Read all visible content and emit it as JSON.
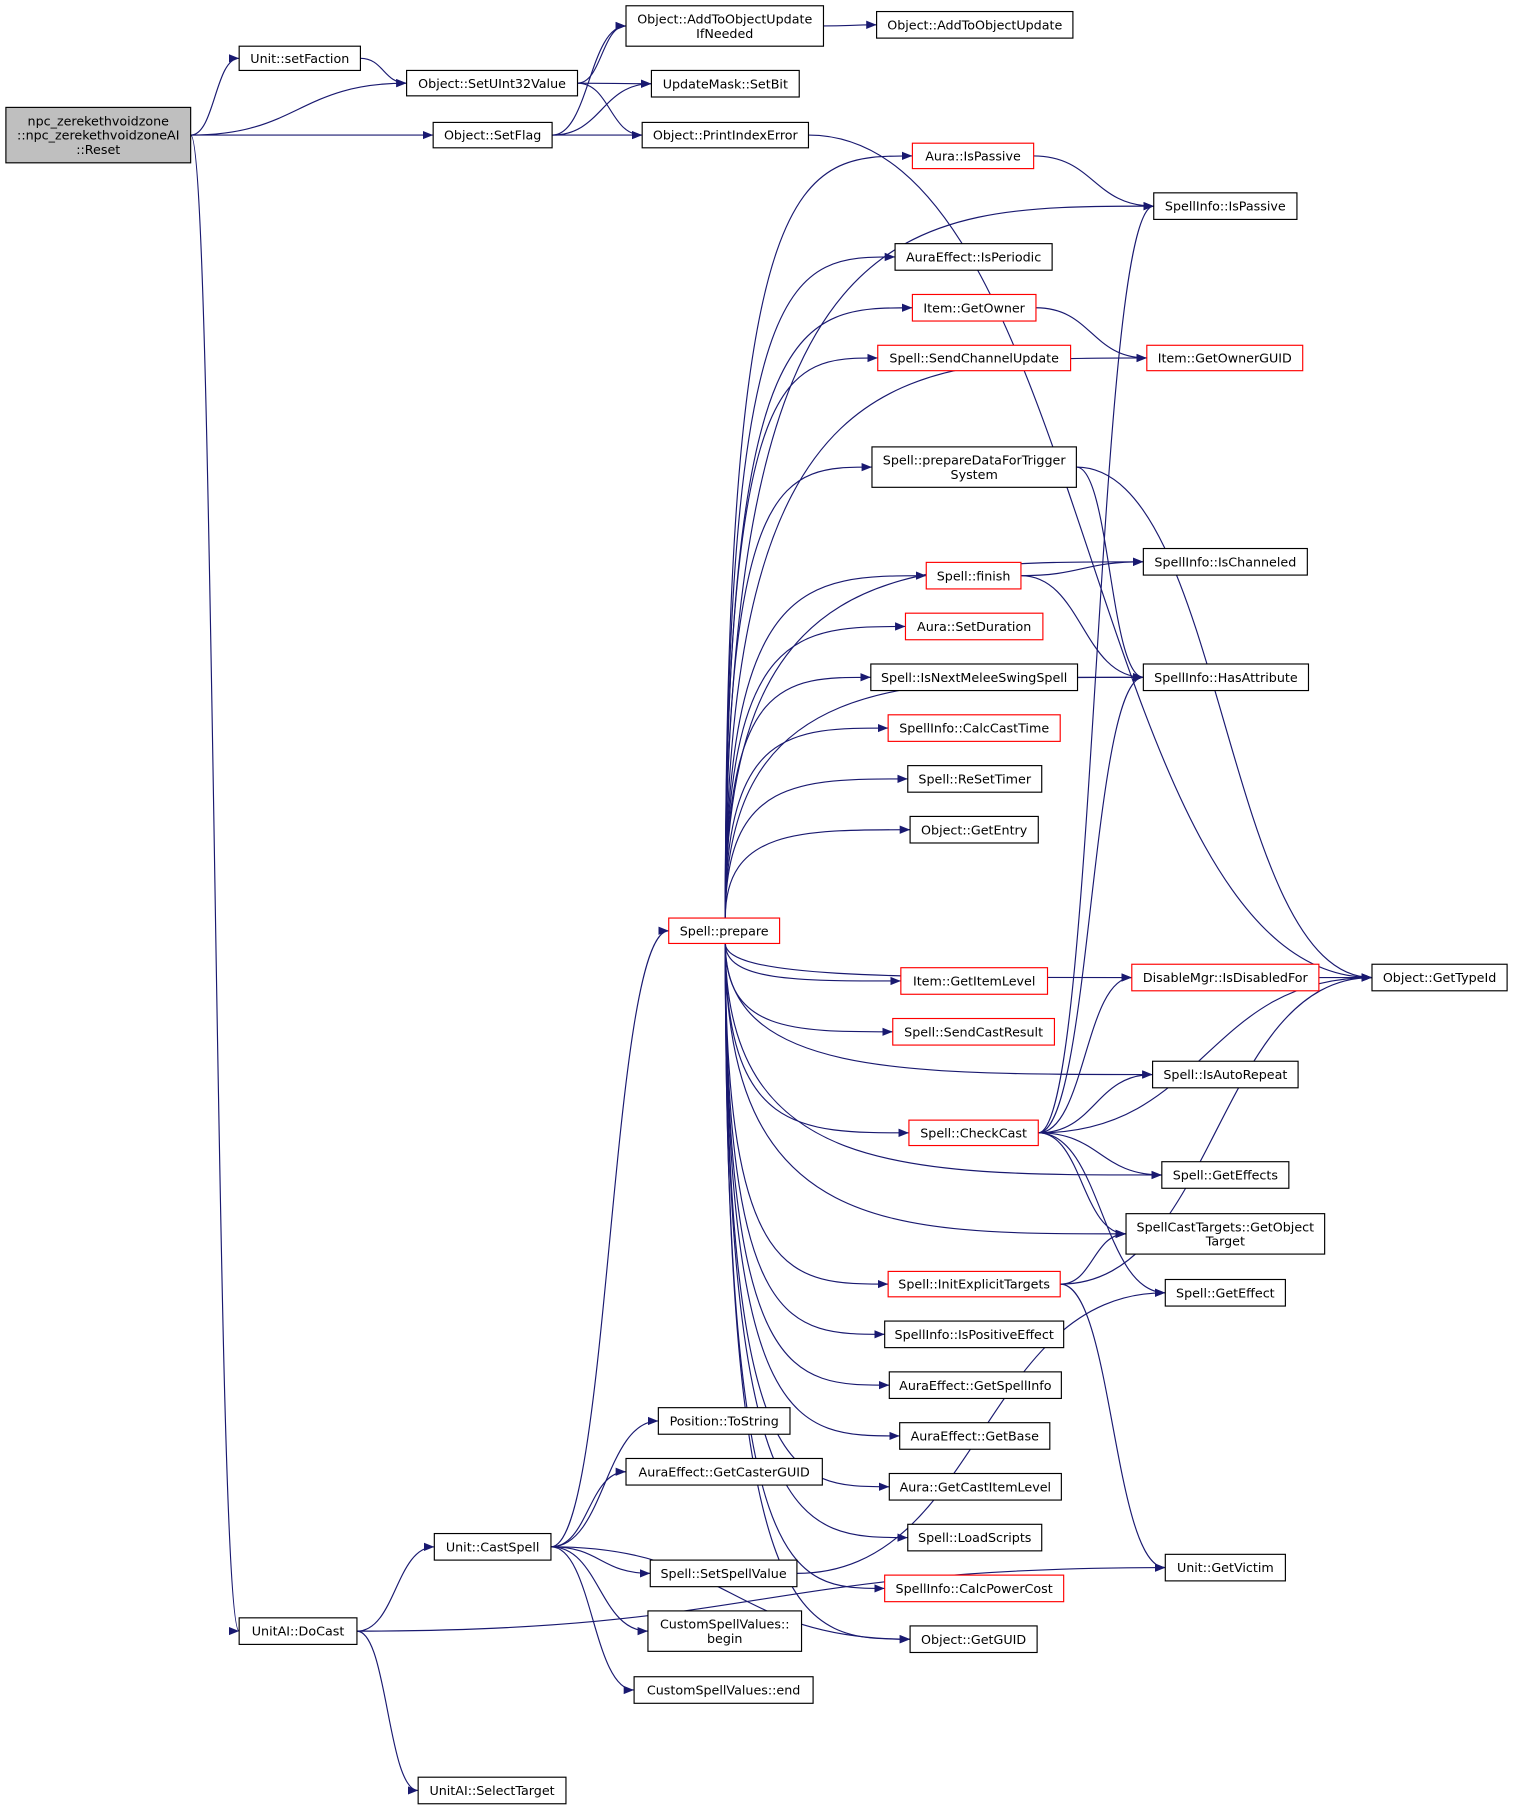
{
  "colors": {
    "edge": "#191970",
    "root_fill": "#bfbfbf",
    "normal_border": "#000000",
    "truncated_border": "#ff0000"
  },
  "nodes": {
    "reset": {
      "lines": [
        "npc_zerekethvoidzone",
        "::npc_zerekethvoidzoneAI",
        "::Reset"
      ],
      "root": true
    },
    "setFaction": {
      "lines": [
        "Unit::setFaction"
      ]
    },
    "setUInt32": {
      "lines": [
        "Object::SetUInt32Value"
      ]
    },
    "setFlag": {
      "lines": [
        "Object::SetFlag"
      ]
    },
    "addIfNeeded": {
      "lines": [
        "Object::AddToObjectUpdate",
        "IfNeeded"
      ]
    },
    "addUpdate": {
      "lines": [
        "Object::AddToObjectUpdate"
      ]
    },
    "setBit": {
      "lines": [
        "UpdateMask::SetBit"
      ]
    },
    "printIdx": {
      "lines": [
        "Object::PrintIndexError"
      ]
    },
    "auraIsPassive": {
      "lines": [
        "Aura::IsPassive"
      ],
      "truncated": true
    },
    "siIsPassive": {
      "lines": [
        "SpellInfo::IsPassive"
      ]
    },
    "isPeriodic": {
      "lines": [
        "AuraEffect::IsPeriodic"
      ]
    },
    "getOwner": {
      "lines": [
        "Item::GetOwner"
      ],
      "truncated": true
    },
    "sendChannel": {
      "lines": [
        "Spell::SendChannelUpdate"
      ],
      "truncated": true
    },
    "ownerGUID": {
      "lines": [
        "Item::GetOwnerGUID"
      ],
      "truncated": true
    },
    "prepTrigger": {
      "lines": [
        "Spell::prepareDataForTrigger",
        "System"
      ]
    },
    "getTypeId": {
      "lines": [
        "Object::GetTypeId"
      ]
    },
    "isChanneled": {
      "lines": [
        "SpellInfo::IsChanneled"
      ]
    },
    "finish": {
      "lines": [
        "Spell::finish"
      ],
      "truncated": true
    },
    "setDuration": {
      "lines": [
        "Aura::SetDuration"
      ],
      "truncated": true
    },
    "nextMelee": {
      "lines": [
        "Spell::IsNextMeleeSwingSpell"
      ]
    },
    "hasAttr": {
      "lines": [
        "SpellInfo::HasAttribute"
      ]
    },
    "calcCast": {
      "lines": [
        "SpellInfo::CalcCastTime"
      ],
      "truncated": true
    },
    "reSetTimer": {
      "lines": [
        "Spell::ReSetTimer"
      ]
    },
    "getEntry": {
      "lines": [
        "Object::GetEntry"
      ]
    },
    "prepare": {
      "lines": [
        "Spell::prepare"
      ],
      "truncated": true
    },
    "itemLevel": {
      "lines": [
        "Item::GetItemLevel"
      ],
      "truncated": true
    },
    "disabled": {
      "lines": [
        "DisableMgr::IsDisabledFor"
      ],
      "truncated": true
    },
    "castResult": {
      "lines": [
        "Spell::SendCastResult"
      ],
      "truncated": true
    },
    "autoRepeat": {
      "lines": [
        "Spell::IsAutoRepeat"
      ]
    },
    "checkCast": {
      "lines": [
        "Spell::CheckCast"
      ],
      "truncated": true
    },
    "getEffects": {
      "lines": [
        "Spell::GetEffects"
      ]
    },
    "objTarget": {
      "lines": [
        "SpellCastTargets::GetObject",
        "Target"
      ]
    },
    "initTargets": {
      "lines": [
        "Spell::InitExplicitTargets"
      ],
      "truncated": true
    },
    "getEffect": {
      "lines": [
        "Spell::GetEffect"
      ]
    },
    "posEffect": {
      "lines": [
        "SpellInfo::IsPositiveEffect"
      ]
    },
    "getSpellInfo": {
      "lines": [
        "AuraEffect::GetSpellInfo"
      ]
    },
    "getBase": {
      "lines": [
        "AuraEffect::GetBase"
      ]
    },
    "castItemLevel": {
      "lines": [
        "Aura::GetCastItemLevel"
      ]
    },
    "loadScripts": {
      "lines": [
        "Spell::LoadScripts"
      ]
    },
    "powerCost": {
      "lines": [
        "SpellInfo::CalcPowerCost"
      ],
      "truncated": true
    },
    "getGUID": {
      "lines": [
        "Object::GetGUID"
      ]
    },
    "getVictim": {
      "lines": [
        "Unit::GetVictim"
      ]
    },
    "toString": {
      "lines": [
        "Position::ToString"
      ]
    },
    "casterGUID": {
      "lines": [
        "AuraEffect::GetCasterGUID"
      ]
    },
    "castSpell": {
      "lines": [
        "Unit::CastSpell"
      ]
    },
    "setSpellValue": {
      "lines": [
        "Spell::SetSpellValue"
      ]
    },
    "csvBegin": {
      "lines": [
        "CustomSpellValues::",
        "begin"
      ]
    },
    "csvEnd": {
      "lines": [
        "CustomSpellValues::end"
      ]
    },
    "doCast": {
      "lines": [
        "UnitAI::DoCast"
      ]
    },
    "selectTarget": {
      "lines": [
        "UnitAI::SelectTarget"
      ]
    }
  },
  "edges": [
    [
      "reset",
      "setFaction"
    ],
    [
      "reset",
      "setUInt32"
    ],
    [
      "reset",
      "setFlag"
    ],
    [
      "reset",
      "doCast"
    ],
    [
      "setFaction",
      "setUInt32"
    ],
    [
      "setUInt32",
      "addIfNeeded"
    ],
    [
      "setUInt32",
      "setBit"
    ],
    [
      "setUInt32",
      "printIdx"
    ],
    [
      "setFlag",
      "addIfNeeded"
    ],
    [
      "setFlag",
      "setBit"
    ],
    [
      "setFlag",
      "printIdx"
    ],
    [
      "addIfNeeded",
      "addUpdate"
    ],
    [
      "printIdx",
      "getTypeId"
    ],
    [
      "auraIsPassive",
      "siIsPassive"
    ],
    [
      "getOwner",
      "ownerGUID"
    ],
    [
      "prepTrigger",
      "getTypeId"
    ],
    [
      "prepTrigger",
      "hasAttr"
    ],
    [
      "finish",
      "isChanneled"
    ],
    [
      "finish",
      "hasAttr"
    ],
    [
      "nextMelee",
      "hasAttr"
    ],
    [
      "disabled",
      "getTypeId"
    ],
    [
      "checkCast",
      "siIsPassive"
    ],
    [
      "checkCast",
      "hasAttr"
    ],
    [
      "checkCast",
      "disabled"
    ],
    [
      "checkCast",
      "autoRepeat"
    ],
    [
      "checkCast",
      "getTypeId"
    ],
    [
      "checkCast",
      "getEffects"
    ],
    [
      "checkCast",
      "objTarget"
    ],
    [
      "checkCast",
      "getEffect"
    ],
    [
      "initTargets",
      "objTarget"
    ],
    [
      "initTargets",
      "getTypeId"
    ],
    [
      "initTargets",
      "getVictim"
    ],
    [
      "prepare",
      "auraIsPassive"
    ],
    [
      "prepare",
      "siIsPassive"
    ],
    [
      "prepare",
      "isPeriodic"
    ],
    [
      "prepare",
      "getOwner"
    ],
    [
      "prepare",
      "sendChannel"
    ],
    [
      "prepare",
      "ownerGUID"
    ],
    [
      "prepare",
      "prepTrigger"
    ],
    [
      "prepare",
      "isChanneled"
    ],
    [
      "prepare",
      "finish"
    ],
    [
      "prepare",
      "setDuration"
    ],
    [
      "prepare",
      "nextMelee"
    ],
    [
      "prepare",
      "calcCast"
    ],
    [
      "prepare",
      "reSetTimer"
    ],
    [
      "prepare",
      "getEntry"
    ],
    [
      "prepare",
      "hasAttr"
    ],
    [
      "prepare",
      "disabled"
    ],
    [
      "prepare",
      "itemLevel"
    ],
    [
      "prepare",
      "castResult"
    ],
    [
      "prepare",
      "autoRepeat"
    ],
    [
      "prepare",
      "checkCast"
    ],
    [
      "prepare",
      "getEffects"
    ],
    [
      "prepare",
      "objTarget"
    ],
    [
      "prepare",
      "initTargets"
    ],
    [
      "prepare",
      "posEffect"
    ],
    [
      "prepare",
      "getSpellInfo"
    ],
    [
      "prepare",
      "getBase"
    ],
    [
      "prepare",
      "castItemLevel"
    ],
    [
      "prepare",
      "loadScripts"
    ],
    [
      "prepare",
      "powerCost"
    ],
    [
      "prepare",
      "getGUID"
    ],
    [
      "castSpell",
      "prepare"
    ],
    [
      "castSpell",
      "toString"
    ],
    [
      "castSpell",
      "casterGUID"
    ],
    [
      "castSpell",
      "setSpellValue"
    ],
    [
      "castSpell",
      "csvBegin"
    ],
    [
      "castSpell",
      "csvEnd"
    ],
    [
      "castSpell",
      "getGUID"
    ],
    [
      "setSpellValue",
      "getEffect"
    ],
    [
      "doCast",
      "castSpell"
    ],
    [
      "doCast",
      "selectTarget"
    ],
    [
      "doCast",
      "getVictim"
    ]
  ]
}
